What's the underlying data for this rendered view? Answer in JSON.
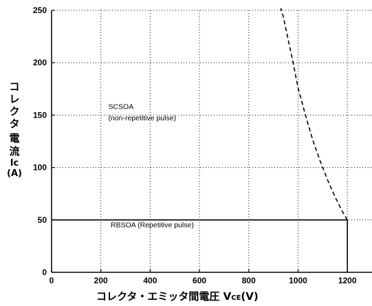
{
  "chart_data": {
    "type": "line",
    "xlabel": "コレクタ・エミッタ間電圧 V",
    "xlabel_sub": "CE",
    "xlabel_unit": "(V)",
    "ylabel_chars": [
      "コ",
      "レ",
      "ク",
      "タ",
      "電",
      "流",
      "Ic",
      "(A)"
    ],
    "xlim": [
      0,
      1300
    ],
    "ylim": [
      0,
      250
    ],
    "x_ticks": [
      0,
      200,
      400,
      600,
      800,
      1000,
      1200
    ],
    "y_ticks": [
      0,
      50,
      100,
      150,
      200,
      250
    ],
    "grid": true,
    "series": [
      {
        "name": "RBSOA (Repetitive pulse)",
        "style": "solid",
        "x": [
          0,
          1200,
          1200
        ],
        "y": [
          50,
          50,
          0
        ]
      },
      {
        "name": "SCSOA (non-repetitive pulse)",
        "style": "dashed",
        "x": [
          1200,
          1180,
          1150,
          1120,
          1090,
          1060,
          1030,
          1000,
          980,
          960,
          940,
          930
        ],
        "y": [
          50,
          58,
          72,
          88,
          106,
          126,
          150,
          176,
          200,
          222,
          244,
          252
        ]
      }
    ],
    "annotations": [
      {
        "text": "SCSOA",
        "x": 230,
        "y": 156
      },
      {
        "text": "(non-repetitive pulse)",
        "x": 230,
        "y": 145
      },
      {
        "text": "RBSOA (Repetitive pulse)",
        "x": 240,
        "y": 43
      }
    ]
  }
}
